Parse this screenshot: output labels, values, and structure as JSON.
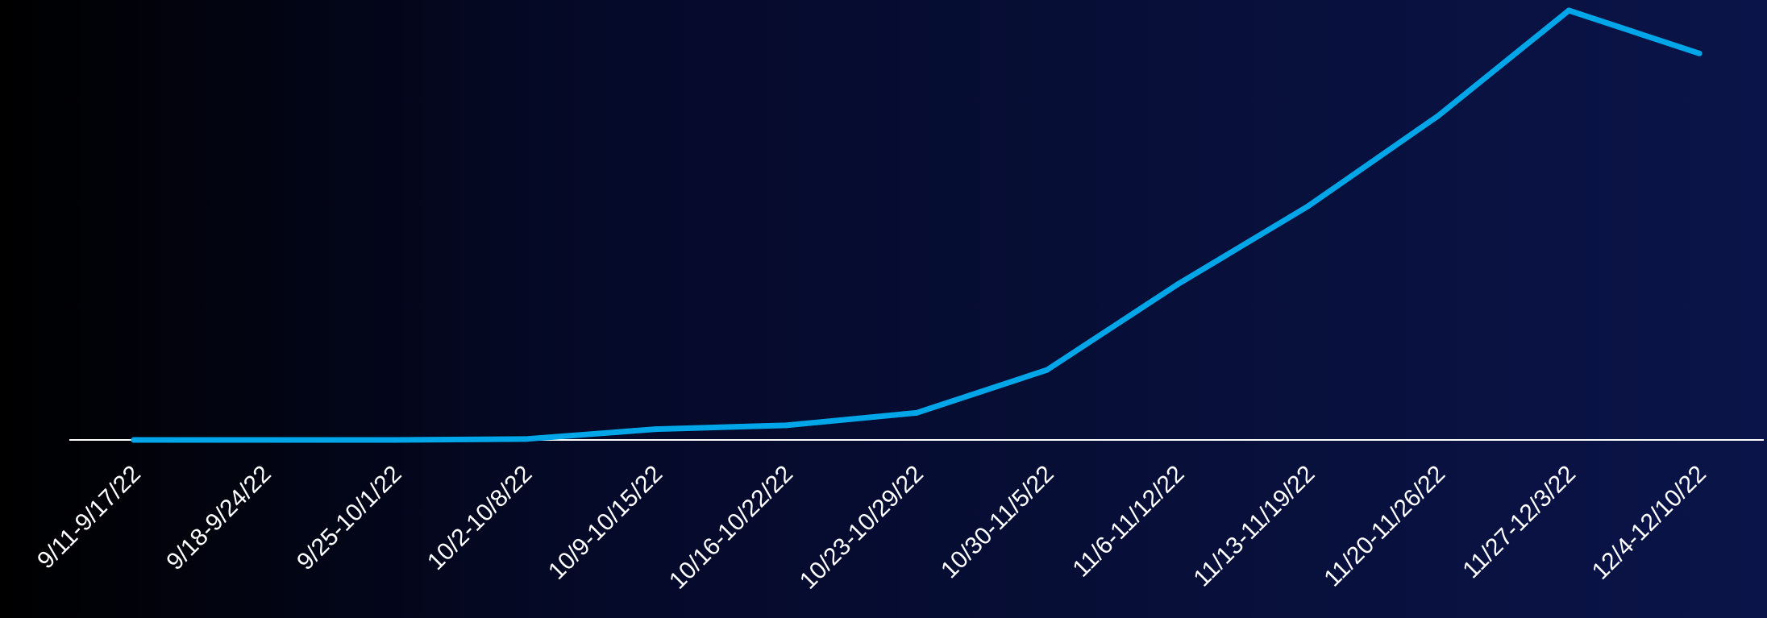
{
  "chart_data": {
    "type": "line",
    "categories": [
      "9/11-9/17/22",
      "9/18-9/24/22",
      "9/25-10/1/22",
      "10/2-10/8/22",
      "10/9-10/15/22",
      "10/16-10/22/22",
      "10/23-10/29/22",
      "10/30-11/5/22",
      "11/6-11/12/22",
      "11/13-11/19/22",
      "11/20-11/26/22",
      "11/27-12/3/22",
      "12/4-12/10/22"
    ],
    "series": [
      {
        "values": [
          0,
          0,
          0,
          0.2,
          2.5,
          3.4,
          6.3,
          16.3,
          36.2,
          54.4,
          75.5,
          100,
          90
        ]
      }
    ],
    "title": "",
    "xlabel": "",
    "ylabel": "",
    "ylim": [
      0,
      100
    ],
    "grid": false,
    "legend": "none",
    "line_color": "#00a6e8",
    "axis_color": "#ffffff"
  }
}
